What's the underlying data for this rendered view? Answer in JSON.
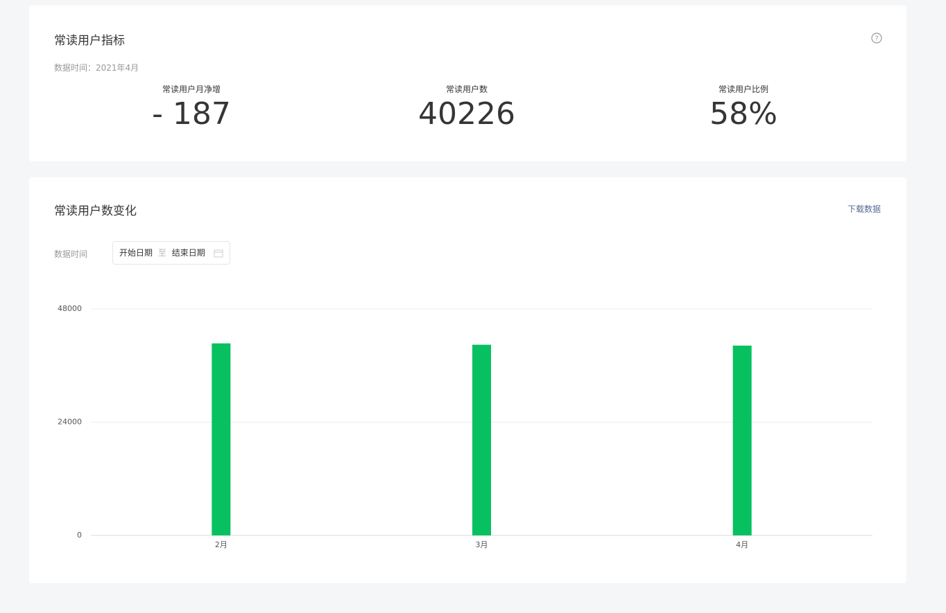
{
  "header": {
    "title": "常读用户指标",
    "date": "数据时间：2021年4月"
  },
  "metrics": [
    {
      "label": "常读用户月净增",
      "value": "- 187"
    },
    {
      "label": "常读用户数",
      "value": "40226"
    },
    {
      "label": "常读用户比例",
      "value": "58%"
    }
  ],
  "chart_card": {
    "title": "常读用户数变化",
    "download": "下载数据",
    "filter_label": "数据时间",
    "start": "开始日期",
    "separator": "至",
    "end": "结束日期"
  },
  "chart_data": {
    "type": "bar",
    "categories": [
      "2月",
      "3月",
      "4月"
    ],
    "values": [
      40700,
      40413,
      40226
    ],
    "color": "#07c160",
    "ylim": [
      0,
      48000
    ],
    "yticks": [
      0,
      24000,
      48000
    ],
    "grid": true
  }
}
